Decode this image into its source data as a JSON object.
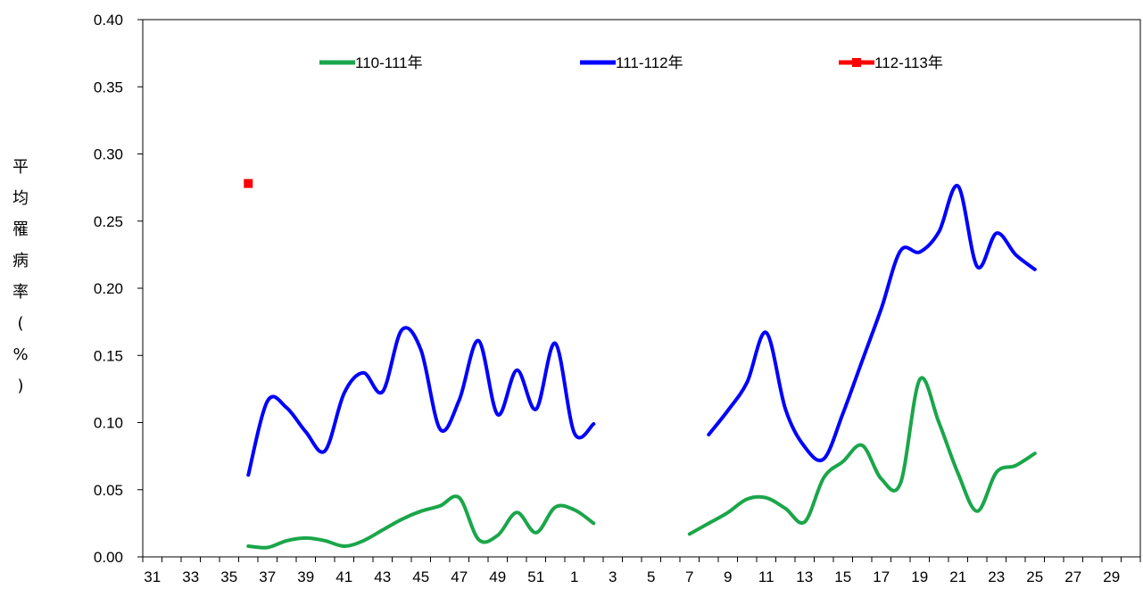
{
  "chart_data": {
    "type": "line",
    "ylabel": "平均罹病率(%)",
    "ylim": [
      0,
      0.4
    ],
    "yticks": [
      "0.00",
      "0.05",
      "0.10",
      "0.15",
      "0.20",
      "0.25",
      "0.30",
      "0.35",
      "0.40"
    ],
    "x_weeks": [
      31,
      32,
      33,
      34,
      35,
      36,
      37,
      38,
      39,
      40,
      41,
      42,
      43,
      44,
      45,
      46,
      47,
      48,
      49,
      50,
      51,
      52,
      1,
      2,
      3,
      4,
      5,
      6,
      7,
      8,
      9,
      10,
      11,
      12,
      13,
      14,
      15,
      16,
      17,
      18,
      19,
      20,
      21,
      22,
      23,
      24,
      25,
      26,
      27,
      28,
      29,
      30
    ],
    "x_tick_labels": [
      "31",
      "33",
      "35",
      "37",
      "39",
      "41",
      "43",
      "45",
      "47",
      "49",
      "51",
      "1",
      "3",
      "5",
      "7",
      "9",
      "11",
      "13",
      "15",
      "17",
      "19",
      "21",
      "23",
      "25",
      "27",
      "29"
    ],
    "series": [
      {
        "name": "110-111年",
        "color": "#1aa64a",
        "segments": [
          [
            [
              36,
              0.008
            ],
            [
              37,
              0.007
            ],
            [
              38,
              0.012
            ],
            [
              39,
              0.014
            ],
            [
              40,
              0.012
            ],
            [
              41,
              0.008
            ],
            [
              42,
              0.012
            ],
            [
              43,
              0.02
            ],
            [
              44,
              0.028
            ],
            [
              45,
              0.034
            ],
            [
              46,
              0.038
            ],
            [
              47,
              0.044
            ],
            [
              48,
              0.013
            ],
            [
              49,
              0.016
            ],
            [
              50,
              0.033
            ],
            [
              51,
              0.018
            ],
            [
              52,
              0.037
            ],
            [
              1,
              0.035
            ],
            [
              2,
              0.025
            ]
          ],
          [
            [
              7,
              0.017
            ],
            [
              8,
              0.025
            ],
            [
              9,
              0.033
            ],
            [
              10,
              0.043
            ],
            [
              11,
              0.044
            ],
            [
              12,
              0.036
            ],
            [
              13,
              0.026
            ],
            [
              14,
              0.059
            ],
            [
              15,
              0.071
            ],
            [
              16,
              0.083
            ],
            [
              17,
              0.058
            ],
            [
              18,
              0.055
            ],
            [
              19,
              0.132
            ],
            [
              20,
              0.1
            ],
            [
              21,
              0.062
            ],
            [
              22,
              0.034
            ],
            [
              23,
              0.063
            ],
            [
              24,
              0.068
            ],
            [
              25,
              0.077
            ]
          ]
        ]
      },
      {
        "name": "111-112年",
        "color": "#0000ff",
        "segments": [
          [
            [
              36,
              0.061
            ],
            [
              37,
              0.116
            ],
            [
              38,
              0.111
            ],
            [
              39,
              0.093
            ],
            [
              40,
              0.079
            ],
            [
              41,
              0.122
            ],
            [
              42,
              0.137
            ],
            [
              43,
              0.123
            ],
            [
              44,
              0.169
            ],
            [
              45,
              0.154
            ],
            [
              46,
              0.095
            ],
            [
              47,
              0.117
            ],
            [
              48,
              0.161
            ],
            [
              49,
              0.106
            ],
            [
              50,
              0.139
            ],
            [
              51,
              0.11
            ],
            [
              52,
              0.159
            ],
            [
              1,
              0.092
            ],
            [
              2,
              0.099
            ]
          ],
          [
            [
              8,
              0.091
            ],
            [
              9,
              0.109
            ],
            [
              10,
              0.13
            ],
            [
              11,
              0.167
            ],
            [
              12,
              0.11
            ],
            [
              13,
              0.082
            ],
            [
              14,
              0.073
            ],
            [
              15,
              0.107
            ],
            [
              16,
              0.146
            ],
            [
              17,
              0.185
            ],
            [
              18,
              0.228
            ],
            [
              19,
              0.227
            ],
            [
              20,
              0.242
            ],
            [
              21,
              0.276
            ],
            [
              22,
              0.216
            ],
            [
              23,
              0.241
            ],
            [
              24,
              0.225
            ],
            [
              25,
              0.214
            ]
          ]
        ]
      },
      {
        "name": "112-113年",
        "color": "#ff0000",
        "marker": "square",
        "segments": [
          [
            [
              36,
              0.278
            ]
          ]
        ]
      }
    ],
    "legend_placement": "top",
    "grid": false
  }
}
